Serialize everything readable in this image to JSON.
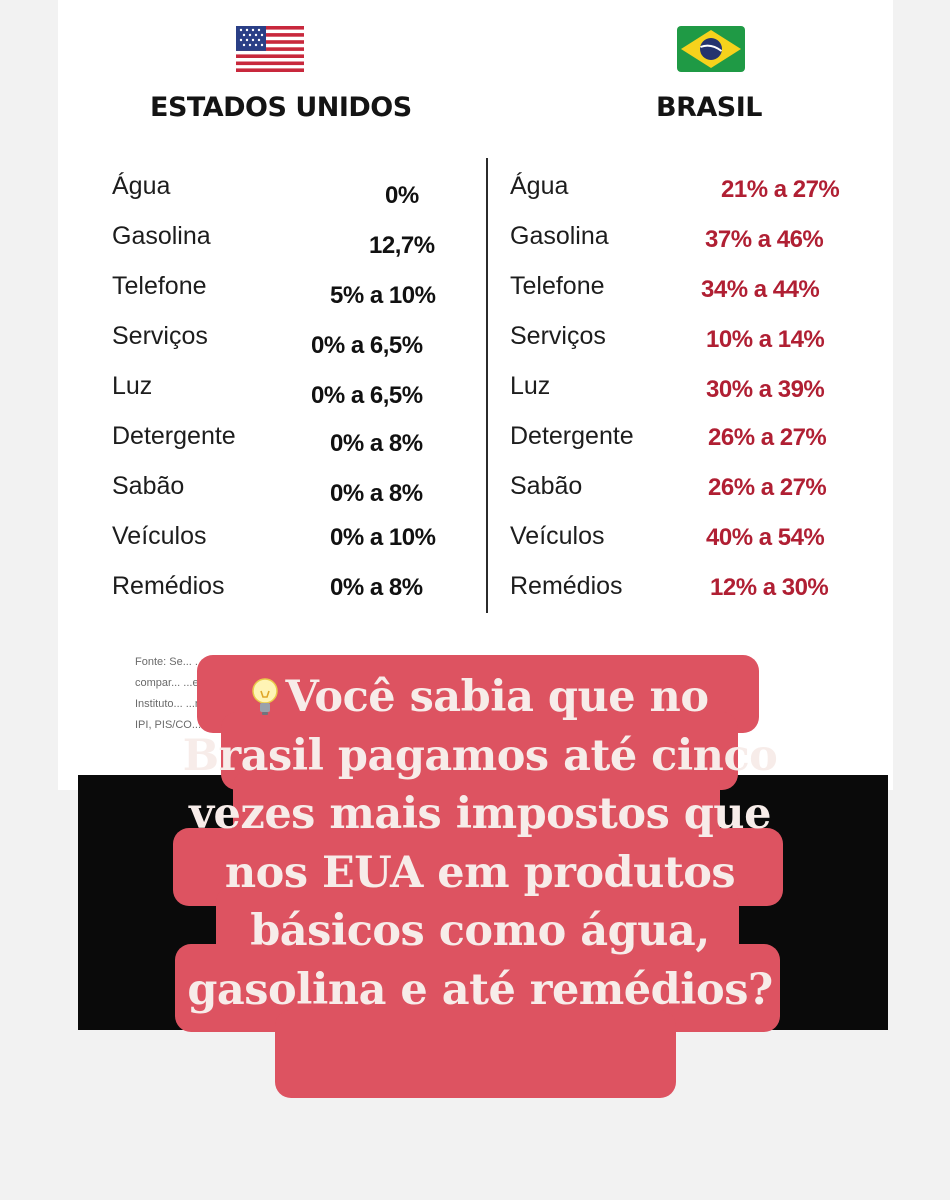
{
  "columns": {
    "us": {
      "title": "ESTADOS UNIDOS"
    },
    "br": {
      "title": "BRASIL"
    }
  },
  "us_rows": [
    {
      "item": "Água",
      "value": "0%"
    },
    {
      "item": "Gasolina",
      "value": "12,7%"
    },
    {
      "item": "Telefone",
      "value": "5% a 10%"
    },
    {
      "item": "Serviços",
      "value": "0% a 6,5%"
    },
    {
      "item": "Luz",
      "value": "0% a 6,5%"
    },
    {
      "item": "Detergente",
      "value": "0% a 8%"
    },
    {
      "item": "Sabão",
      "value": "0% a 8%"
    },
    {
      "item": "Veículos",
      "value": "0% a 10%"
    },
    {
      "item": "Remédios",
      "value": "0% a 8%"
    }
  ],
  "br_rows": [
    {
      "item": "Água",
      "value": "21% a 27%"
    },
    {
      "item": "Gasolina",
      "value": "37% a 46%"
    },
    {
      "item": "Telefone",
      "value": "34% a 44%"
    },
    {
      "item": "Serviços",
      "value": "10% a 14%"
    },
    {
      "item": "Luz",
      "value": "30% a 39%"
    },
    {
      "item": "Detergente",
      "value": "26% a 27%"
    },
    {
      "item": "Sabão",
      "value": "26% a 27%"
    },
    {
      "item": "Veículos",
      "value": "40% a 54%"
    },
    {
      "item": "Remédios",
      "value": "12% a 30%"
    }
  ],
  "source_lines": [
    "Fonte: Se... ...cionais. Base",
    "compar... ...e estudos do",
    "Instituto... ...nsumo (ICMS,",
    "IPI, PIS/CO..."
  ],
  "callout": {
    "icon": "lightbulb-icon",
    "text": "Você sabia que no Brasil pagamos até cinco vezes mais impostos que nos EUA em produtos básicos como água, gasolina e até remédios?",
    "bg_color": "#dd5361",
    "text_color": "#f7ece9"
  },
  "colors": {
    "br_value": "#b01f33",
    "us_value": "#111111"
  }
}
